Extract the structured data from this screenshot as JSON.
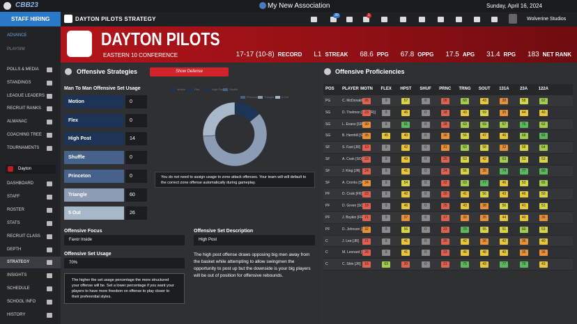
{
  "top_bar": {
    "logo": "CBB23",
    "title": "My New Association",
    "date": "Sunday, April 16, 2024"
  },
  "sidebar": {
    "header": "STAFF HIRING",
    "top_items": [
      "ADVANCE",
      "PLAYSIM"
    ],
    "league_items": [
      "POLLS & MEDIA",
      "STANDINGS",
      "LEAGUE LEADERS",
      "RECRUIT RANKS",
      "ALMANAC",
      "COACHING TREE",
      "TOURNAMENTS"
    ],
    "team_select": "Dayton",
    "team_items": [
      {
        "label": "DASHBOARD"
      },
      {
        "label": "STAFF"
      },
      {
        "label": "ROSTER"
      },
      {
        "label": "STATS"
      },
      {
        "label": "RECRUIT CLASS"
      },
      {
        "label": "DEPTH"
      },
      {
        "label": "STRATEGY",
        "active": true
      },
      {
        "label": "INSIGHTS"
      },
      {
        "label": "SCHEDULE"
      },
      {
        "label": "SCHOOL INFO"
      },
      {
        "label": "HISTORY"
      }
    ]
  },
  "header": {
    "title": "DAYTON PILOTS STRATEGY",
    "badges": [
      39,
      1
    ],
    "user": "Wolverine Studios"
  },
  "banner": {
    "team": "DAYTON PILOTS",
    "conference": "EASTERN 10 CONFERENCE",
    "stats": [
      {
        "value": "17-17 (10-8)",
        "label": "RECORD"
      },
      {
        "value": "L1",
        "label": "STREAK"
      },
      {
        "value": 68.6,
        "label": "PPG"
      },
      {
        "value": 67.8,
        "label": "OPPG"
      },
      {
        "value": 17.5,
        "label": "APG"
      },
      {
        "value": 31.4,
        "label": "RPG"
      },
      {
        "value": 183,
        "label": "NET RANK"
      }
    ]
  },
  "strategy": {
    "title": "Offensive Strategies",
    "button": "Show Defense",
    "usage_title": "Man To Man Offensive Set Usage",
    "sets": [
      {
        "name": "Motion",
        "usage": 0,
        "color": "#1e3456"
      },
      {
        "name": "Flex",
        "usage": 0,
        "color": "#1e3456"
      },
      {
        "name": "High Post",
        "usage": 14,
        "color": "#1e3456"
      },
      {
        "name": "Shuffle",
        "usage": 0,
        "color": "#46628a"
      },
      {
        "name": "Princeton",
        "usage": 0,
        "color": "#46628a"
      },
      {
        "name": "Triangle",
        "usage": 60,
        "color": "#8b9cb4"
      },
      {
        "name": "5 Out",
        "usage": 26,
        "color": "#a9b7ca"
      }
    ],
    "note": "You do not need to assign usage to zone attack offenses. Your team will will default to the correct zone offense automatically during gameplay.",
    "focus_label": "Offensive Focus",
    "focus": "Favor Inside",
    "set_usage_label": "Offensive Set Usage",
    "set_usage": "70%",
    "info": "The higher the set usage percentage the more structured your offense will be. Set a lower percentage if you want your players to have more freedom on offense to play closer to their preferential styles.",
    "desc_label": "Offensive Set Description",
    "desc_select": "High Post",
    "description": "The high post offense draws opposing big men away from the basket while attempting to allow swingmen the opportunity to post up but the downside is your big players will be out of position for offensive rebounds."
  },
  "proficiencies": {
    "title": "Offensive Proficiencies",
    "columns": [
      "POS",
      "PLAYER",
      "MOTN",
      "FLEX",
      "HPST",
      "SHUF",
      "PRNC",
      "TRNG",
      "SOUT",
      "131A",
      "23A",
      "122A"
    ],
    "rows": [
      [
        "PG",
        "C. McDonald [SO]",
        26,
        0,
        57,
        0,
        26,
        60,
        43,
        38,
        58,
        62
      ],
      [
        "SG",
        "D. Thelmon [FR - (R)]",
        23,
        0,
        46,
        0,
        18,
        43,
        59,
        35,
        44,
        40
      ],
      [
        "SG",
        "L. Evans [SR]",
        30,
        0,
        91,
        0,
        28,
        63,
        69,
        67,
        75,
        62
      ],
      [
        "SG",
        "B. Hemhill [SR]",
        35,
        45,
        40,
        0,
        30,
        56,
        47,
        46,
        68,
        83
      ],
      [
        "SF",
        "S. Fast [JR]",
        10,
        0,
        42,
        0,
        31,
        60,
        58,
        32,
        58,
        64
      ],
      [
        "SF",
        "A. Cook [SO]",
        23,
        0,
        49,
        0,
        25,
        53,
        42,
        63,
        53,
        53
      ],
      [
        "SF",
        "J. King [JR]",
        24,
        0,
        41,
        0,
        24,
        56,
        35,
        74,
        77,
        80
      ],
      [
        "SF",
        "A. Cronks [SO]",
        34,
        0,
        54,
        0,
        22,
        63,
        77,
        46,
        53,
        65
      ],
      [
        "PF",
        "D. Cook [FR]",
        23,
        0,
        42,
        0,
        20,
        41,
        56,
        43,
        46,
        50
      ],
      [
        "PF",
        "D. Green [SO]",
        18,
        0,
        46,
        0,
        25,
        43,
        38,
        56,
        41,
        51
      ],
      [
        "PF",
        "J. Boykin [FR]",
        21,
        0,
        37,
        0,
        17,
        30,
        35,
        44,
        40,
        36
      ],
      [
        "PF",
        "D. Johnson [JR]",
        32,
        0,
        56,
        0,
        23,
        70,
        55,
        51,
        60,
        53
      ],
      [
        "C",
        "J. Lee [JR]",
        21,
        0,
        41,
        0,
        20,
        42,
        36,
        42,
        36,
        40
      ],
      [
        "C",
        "M. Leonard [SR]",
        26,
        0,
        41,
        0,
        23,
        46,
        48,
        40,
        35,
        36
      ],
      [
        "C",
        "C. Shin [JR]",
        16,
        63,
        20,
        0,
        21,
        75,
        43,
        77,
        76,
        43
      ]
    ]
  }
}
